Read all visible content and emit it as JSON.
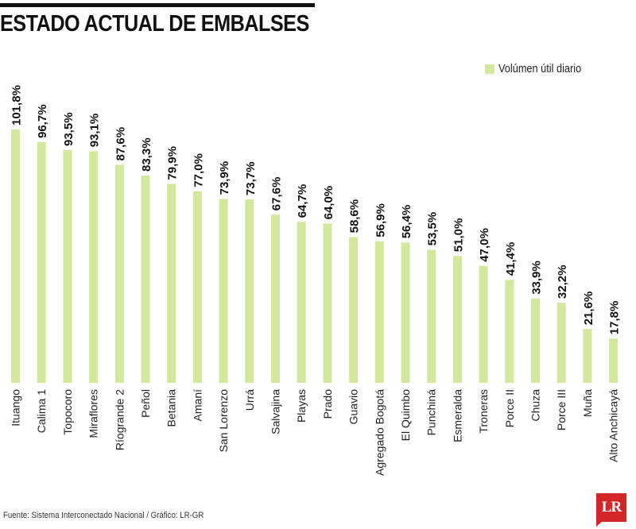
{
  "header": {
    "title": "ESTADO ACTUAL DE EMBALSES"
  },
  "legend": {
    "label": "Volúmen útil diario"
  },
  "footer": {
    "source": "Fuente: Sistema Interconectado Nacional / Gráfico: LR-GR",
    "logo": "LR"
  },
  "colors": {
    "bar": "#d2e89c",
    "logo": "#d32626"
  },
  "chart_data": {
    "type": "bar",
    "title": "ESTADO ACTUAL DE EMBALSES",
    "xlabel": "",
    "ylabel": "",
    "ylim": [
      0,
      101.8
    ],
    "grid": false,
    "legend_position": "top-right",
    "categories": [
      "Ituango",
      "Calima 1",
      "Topocoro",
      "Miraflores",
      "Ríogrande 2",
      "Peñol",
      "Betania",
      "Amaní",
      "San Lorenzo",
      "Urrá",
      "Salvajina",
      "Playas",
      "Prado",
      "Guavio",
      "Agregado Bogotá",
      "El Quimbo",
      "Punchiná",
      "Esmeralda",
      "Troneras",
      "Porce II",
      "Chuza",
      "Porce III",
      "Muña",
      "Alto Anchicayá"
    ],
    "series": [
      {
        "name": "Volúmen útil diario",
        "values": [
          101.8,
          96.7,
          93.5,
          93.1,
          87.6,
          83.3,
          79.9,
          77.0,
          73.9,
          73.7,
          67.6,
          64.7,
          64.0,
          58.6,
          56.9,
          56.4,
          53.5,
          51.0,
          47.0,
          41.4,
          33.9,
          32.2,
          21.6,
          17.8
        ],
        "labels": [
          "101,8%",
          "96,7%",
          "93,5%",
          "93,1%",
          "87,6%",
          "83,3%",
          "79,9%",
          "77,0%",
          "73,9%",
          "73,7%",
          "67,6%",
          "64,7%",
          "64,0%",
          "58,6%",
          "56,9%",
          "56,4%",
          "53,5%",
          "51,0%",
          "47,0%",
          "41,4%",
          "33,9%",
          "32,2%",
          "21,6%",
          "17,8%"
        ]
      }
    ]
  }
}
